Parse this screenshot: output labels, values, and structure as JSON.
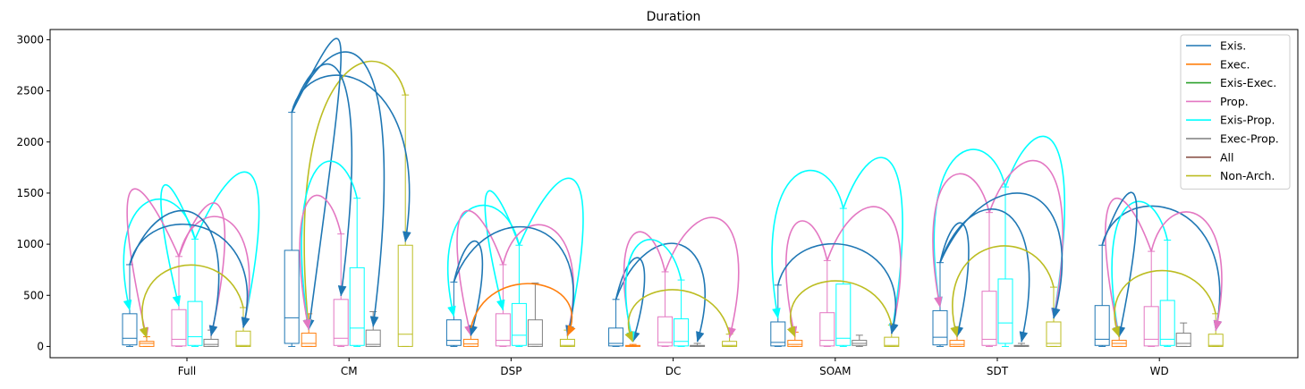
{
  "chart_data": {
    "type": "box",
    "title": "Duration",
    "xlabel": "",
    "ylabel": "",
    "ylim": [
      -110,
      3100
    ],
    "yticks": [
      0,
      500,
      1000,
      1500,
      2000,
      2500,
      3000
    ],
    "categories": [
      "Full",
      "CM",
      "DSP",
      "DC",
      "SOAM",
      "SDT",
      "WD"
    ],
    "legend_position": "top-right",
    "grid": false,
    "series": [
      {
        "name": "Exis.",
        "color": "#1f77b4"
      },
      {
        "name": "Exec.",
        "color": "#ff7f0e"
      },
      {
        "name": "Exis-Exec.",
        "color": "#2ca02c"
      },
      {
        "name": "Prop.",
        "color": "#e377c2"
      },
      {
        "name": "Exis-Prop.",
        "color": "#00ffff"
      },
      {
        "name": "Exec-Prop.",
        "color": "#7f7f7f"
      },
      {
        "name": "All",
        "color": "#8c564b"
      },
      {
        "name": "Non-Arch.",
        "color": "#bcbd22"
      }
    ],
    "boxes": {
      "Full": [
        {
          "series": "Exis.",
          "min": 0,
          "q1": 15,
          "median": 80,
          "q3": 320,
          "max": 800
        },
        {
          "series": "Exec.",
          "min": 0,
          "q1": 0,
          "median": 30,
          "q3": 50,
          "max": 95
        },
        {
          "series": "Prop.",
          "min": 0,
          "q1": 5,
          "median": 70,
          "q3": 360,
          "max": 880
        },
        {
          "series": "Exis-Prop.",
          "min": 0,
          "q1": 10,
          "median": 95,
          "q3": 440,
          "max": 1050
        },
        {
          "series": "Exec-Prop.",
          "min": 0,
          "q1": 0,
          "median": 20,
          "q3": 70,
          "max": 160
        },
        {
          "series": "Non-Arch.",
          "min": 0,
          "q1": 0,
          "median": 10,
          "q3": 150,
          "max": 380
        }
      ],
      "CM": [
        {
          "series": "Exis.",
          "min": 0,
          "q1": 30,
          "median": 280,
          "q3": 940,
          "max": 2290
        },
        {
          "series": "Exec.",
          "min": 0,
          "q1": 0,
          "median": 30,
          "q3": 130,
          "max": 320
        },
        {
          "series": "Prop.",
          "min": 0,
          "q1": 10,
          "median": 80,
          "q3": 460,
          "max": 1100
        },
        {
          "series": "Exis-Prop.",
          "min": 0,
          "q1": 10,
          "median": 180,
          "q3": 770,
          "max": 1450
        },
        {
          "series": "Exec-Prop.",
          "min": 0,
          "q1": 0,
          "median": 20,
          "q3": 160,
          "max": 340
        },
        {
          "series": "Non-Arch.",
          "min": 0,
          "q1": 0,
          "median": 120,
          "q3": 990,
          "max": 2460
        }
      ],
      "DSP": [
        {
          "series": "Exis.",
          "min": 0,
          "q1": 10,
          "median": 60,
          "q3": 260,
          "max": 630
        },
        {
          "series": "Exec.",
          "min": 0,
          "q1": 0,
          "median": 25,
          "q3": 70,
          "max": 180
        },
        {
          "series": "Prop.",
          "min": 0,
          "q1": 5,
          "median": 60,
          "q3": 320,
          "max": 800
        },
        {
          "series": "Exis-Prop.",
          "min": 0,
          "q1": 10,
          "median": 110,
          "q3": 420,
          "max": 990
        },
        {
          "series": "Exec-Prop.",
          "min": 0,
          "q1": 0,
          "median": 20,
          "q3": 260,
          "max": 620
        },
        {
          "series": "Non-Arch.",
          "min": 0,
          "q1": 0,
          "median": 10,
          "q3": 70,
          "max": 160
        }
      ],
      "DC": [
        {
          "series": "Exis.",
          "min": 0,
          "q1": 5,
          "median": 30,
          "q3": 180,
          "max": 460
        },
        {
          "series": "Exec.",
          "min": 0,
          "q1": 0,
          "median": 5,
          "q3": 10,
          "max": 20
        },
        {
          "series": "Prop.",
          "min": 0,
          "q1": 5,
          "median": 40,
          "q3": 290,
          "max": 730
        },
        {
          "series": "Exis-Prop.",
          "min": 0,
          "q1": 5,
          "median": 50,
          "q3": 270,
          "max": 650
        },
        {
          "series": "Exec-Prop.",
          "min": 0,
          "q1": 0,
          "median": 5,
          "q3": 10,
          "max": 30
        },
        {
          "series": "Non-Arch.",
          "min": 0,
          "q1": 0,
          "median": 10,
          "q3": 50,
          "max": 120
        }
      ],
      "SOAM": [
        {
          "series": "Exis.",
          "min": 0,
          "q1": 5,
          "median": 40,
          "q3": 240,
          "max": 600
        },
        {
          "series": "Exec.",
          "min": 0,
          "q1": 0,
          "median": 20,
          "q3": 60,
          "max": 140
        },
        {
          "series": "Prop.",
          "min": 0,
          "q1": 5,
          "median": 60,
          "q3": 330,
          "max": 840
        },
        {
          "series": "Exis-Prop.",
          "min": 0,
          "q1": 10,
          "median": 80,
          "q3": 610,
          "max": 1350
        },
        {
          "series": "Exec-Prop.",
          "min": 0,
          "q1": 10,
          "median": 30,
          "q3": 60,
          "max": 110
        },
        {
          "series": "Non-Arch.",
          "min": 0,
          "q1": 0,
          "median": 10,
          "q3": 90,
          "max": 210
        }
      ],
      "SDT": [
        {
          "series": "Exis.",
          "min": 0,
          "q1": 15,
          "median": 90,
          "q3": 350,
          "max": 820
        },
        {
          "series": "Exec.",
          "min": 0,
          "q1": 0,
          "median": 20,
          "q3": 60,
          "max": 140
        },
        {
          "series": "Prop.",
          "min": 0,
          "q1": 10,
          "median": 70,
          "q3": 540,
          "max": 1310
        },
        {
          "series": "Exis-Prop.",
          "min": 0,
          "q1": 30,
          "median": 230,
          "q3": 660,
          "max": 1560
        },
        {
          "series": "Exec-Prop.",
          "min": 0,
          "q1": 0,
          "median": 5,
          "q3": 10,
          "max": 30
        },
        {
          "series": "Non-Arch.",
          "min": 0,
          "q1": 0,
          "median": 30,
          "q3": 240,
          "max": 580
        }
      ],
      "WD": [
        {
          "series": "Exis.",
          "min": 0,
          "q1": 10,
          "median": 70,
          "q3": 400,
          "max": 990
        },
        {
          "series": "Exec.",
          "min": 0,
          "q1": 0,
          "median": 30,
          "q3": 60,
          "max": 150
        },
        {
          "series": "Prop.",
          "min": 0,
          "q1": 5,
          "median": 70,
          "q3": 390,
          "max": 930
        },
        {
          "series": "Exis-Prop.",
          "min": 0,
          "q1": 10,
          "median": 70,
          "q3": 450,
          "max": 1040
        },
        {
          "series": "Exec-Prop.",
          "min": 0,
          "q1": 0,
          "median": 30,
          "q3": 130,
          "max": 230
        },
        {
          "series": "Non-Arch.",
          "min": 0,
          "q1": 0,
          "median": 10,
          "q3": 120,
          "max": 320
        }
      ]
    },
    "arrows": {
      "Full": [
        {
          "series": "Exis-Prop.",
          "from": "Exis-Prop.",
          "to": "Exis."
        },
        {
          "series": "Exis-Prop.",
          "from": "Exis-Prop.",
          "to": "Prop."
        },
        {
          "series": "Exis-Prop.",
          "from": "Exis-Prop.",
          "to": "Non-Arch."
        },
        {
          "series": "Prop.",
          "from": "Prop.",
          "to": "Non-Arch."
        },
        {
          "series": "Prop.",
          "from": "Prop.",
          "to": "Exec-Prop."
        },
        {
          "series": "Prop.",
          "from": "Prop.",
          "to": "Exec."
        },
        {
          "series": "Exis.",
          "from": "Exis.",
          "to": "Non-Arch."
        },
        {
          "series": "Exis.",
          "from": "Exis.",
          "to": "Exec-Prop."
        },
        {
          "series": "Non-Arch.",
          "from": "Non-Arch.",
          "to": "Exec."
        }
      ],
      "CM": [
        {
          "series": "Exis.",
          "from": "Exis.",
          "to": "Non-Arch."
        },
        {
          "series": "Non-Arch.",
          "from": "Non-Arch.",
          "to": "Exec."
        },
        {
          "series": "Exis.",
          "from": "Exis.",
          "to": "Prop."
        },
        {
          "series": "Exis.",
          "from": "Exis.",
          "to": "Exec-Prop."
        },
        {
          "series": "Exis.",
          "from": "Exis.",
          "to": "Exec."
        },
        {
          "series": "Exis-Prop.",
          "from": "Exis-Prop.",
          "to": "Exec."
        },
        {
          "series": "Prop.",
          "from": "Prop.",
          "to": "Exec."
        }
      ],
      "DSP": [
        {
          "series": "Exis-Prop.",
          "from": "Exis-Prop.",
          "to": "Exis."
        },
        {
          "series": "Exis-Prop.",
          "from": "Exis-Prop.",
          "to": "Prop."
        },
        {
          "series": "Exis-Prop.",
          "from": "Exis-Prop.",
          "to": "Non-Arch."
        },
        {
          "series": "Prop.",
          "from": "Prop.",
          "to": "Non-Arch."
        },
        {
          "series": "Prop.",
          "from": "Prop.",
          "to": "Exec."
        },
        {
          "series": "Exis.",
          "from": "Exis.",
          "to": "Exec."
        },
        {
          "series": "Exis.",
          "from": "Exis.",
          "to": "Non-Arch."
        },
        {
          "series": "Exec.",
          "from": "Exec.",
          "to": "Non-Arch."
        }
      ],
      "DC": [
        {
          "series": "Exis.",
          "from": "Exis.",
          "to": "Exec."
        },
        {
          "series": "Exis.",
          "from": "Exis.",
          "to": "Exec-Prop."
        },
        {
          "series": "Prop.",
          "from": "Prop.",
          "to": "Exec."
        },
        {
          "series": "Prop.",
          "from": "Prop.",
          "to": "Non-Arch."
        },
        {
          "series": "Exis-Prop.",
          "from": "Exis-Prop.",
          "to": "Exec."
        },
        {
          "series": "Non-Arch.",
          "from": "Non-Arch.",
          "to": "Exec."
        }
      ],
      "SOAM": [
        {
          "series": "Exis-Prop.",
          "from": "Exis-Prop.",
          "to": "Exis."
        },
        {
          "series": "Exis-Prop.",
          "from": "Exis-Prop.",
          "to": "Non-Arch."
        },
        {
          "series": "Prop.",
          "from": "Prop.",
          "to": "Exec."
        },
        {
          "series": "Prop.",
          "from": "Prop.",
          "to": "Non-Arch."
        },
        {
          "series": "Exis.",
          "from": "Exis.",
          "to": "Non-Arch."
        },
        {
          "series": "Non-Arch.",
          "from": "Non-Arch.",
          "to": "Exec."
        }
      ],
      "SDT": [
        {
          "series": "Exis-Prop.",
          "from": "Exis-Prop.",
          "to": "Exis."
        },
        {
          "series": "Exis-Prop.",
          "from": "Exis-Prop.",
          "to": "Non-Arch."
        },
        {
          "series": "Prop.",
          "from": "Prop.",
          "to": "Exis."
        },
        {
          "series": "Prop.",
          "from": "Prop.",
          "to": "Non-Arch."
        },
        {
          "series": "Exis.",
          "from": "Exis.",
          "to": "Exec."
        },
        {
          "series": "Exis.",
          "from": "Exis.",
          "to": "Exec-Prop."
        },
        {
          "series": "Exis.",
          "from": "Exis.",
          "to": "Non-Arch."
        },
        {
          "series": "Non-Arch.",
          "from": "Non-Arch.",
          "to": "Exec."
        }
      ],
      "WD": [
        {
          "series": "Exis.",
          "from": "Exis.",
          "to": "Non-Arch."
        },
        {
          "series": "Exis-Prop.",
          "from": "Exis-Prop.",
          "to": "Exec."
        },
        {
          "series": "Prop.",
          "from": "Prop.",
          "to": "Non-Arch."
        },
        {
          "series": "Prop.",
          "from": "Prop.",
          "to": "Exec."
        },
        {
          "series": "Exis.",
          "from": "Exis.",
          "to": "Exec."
        },
        {
          "series": "Non-Arch.",
          "from": "Non-Arch.",
          "to": "Exec."
        }
      ]
    }
  }
}
